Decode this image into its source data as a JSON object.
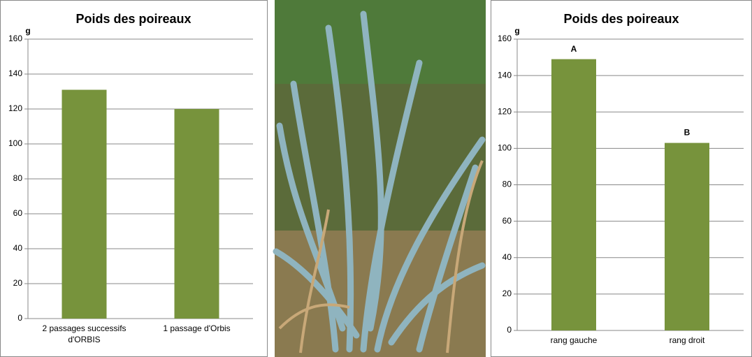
{
  "chart_data": [
    {
      "type": "bar",
      "title": "Poids des poireaux",
      "y_unit": "g",
      "categories": [
        "2 passages successifs d'ORBIS",
        "1 passage d'Orbis"
      ],
      "values": [
        131,
        120
      ],
      "color": "#77933c",
      "ylim": [
        0,
        160
      ],
      "yticks": [
        0,
        20,
        40,
        60,
        80,
        100,
        120,
        140,
        160
      ],
      "grid": true
    },
    {
      "type": "bar",
      "title": "Poids des poireaux",
      "y_unit": "g",
      "categories": [
        "rang gauche",
        "rang droit"
      ],
      "values": [
        149,
        103
      ],
      "annotations": [
        "A",
        "B"
      ],
      "color": "#77933c",
      "ylim": [
        0,
        160
      ],
      "yticks": [
        0,
        20,
        40,
        60,
        80,
        100,
        120,
        140,
        160
      ],
      "grid": true
    }
  ]
}
